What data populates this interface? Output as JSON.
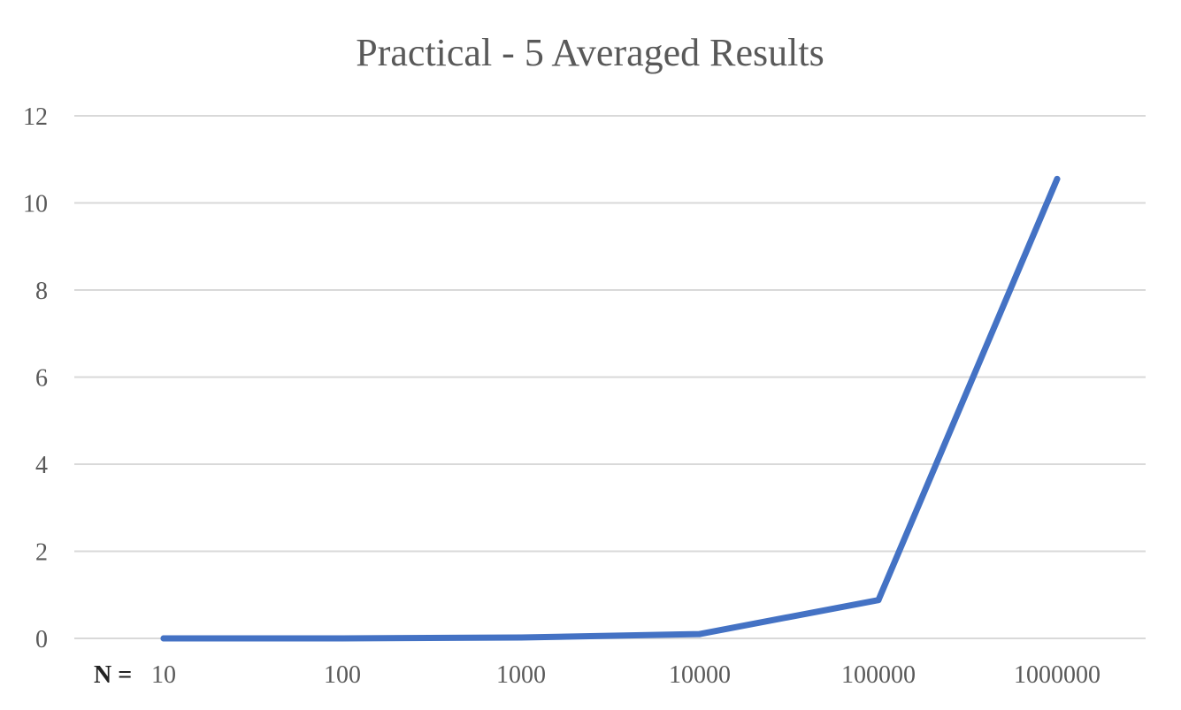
{
  "chart_data": {
    "type": "line",
    "title": "Practical - 5 Averaged Results",
    "x_prefix_label": "N =",
    "categories": [
      "10",
      "100",
      "1000",
      "10000",
      "100000",
      "1000000"
    ],
    "series": [
      {
        "values": [
          0.0,
          0.0,
          0.02,
          0.1,
          0.88,
          10.55
        ],
        "color": "#4472c4"
      }
    ],
    "ylim": [
      0,
      12
    ],
    "yticks": [
      0,
      2,
      4,
      6,
      8,
      10,
      12
    ],
    "grid": true,
    "legend": "none"
  }
}
